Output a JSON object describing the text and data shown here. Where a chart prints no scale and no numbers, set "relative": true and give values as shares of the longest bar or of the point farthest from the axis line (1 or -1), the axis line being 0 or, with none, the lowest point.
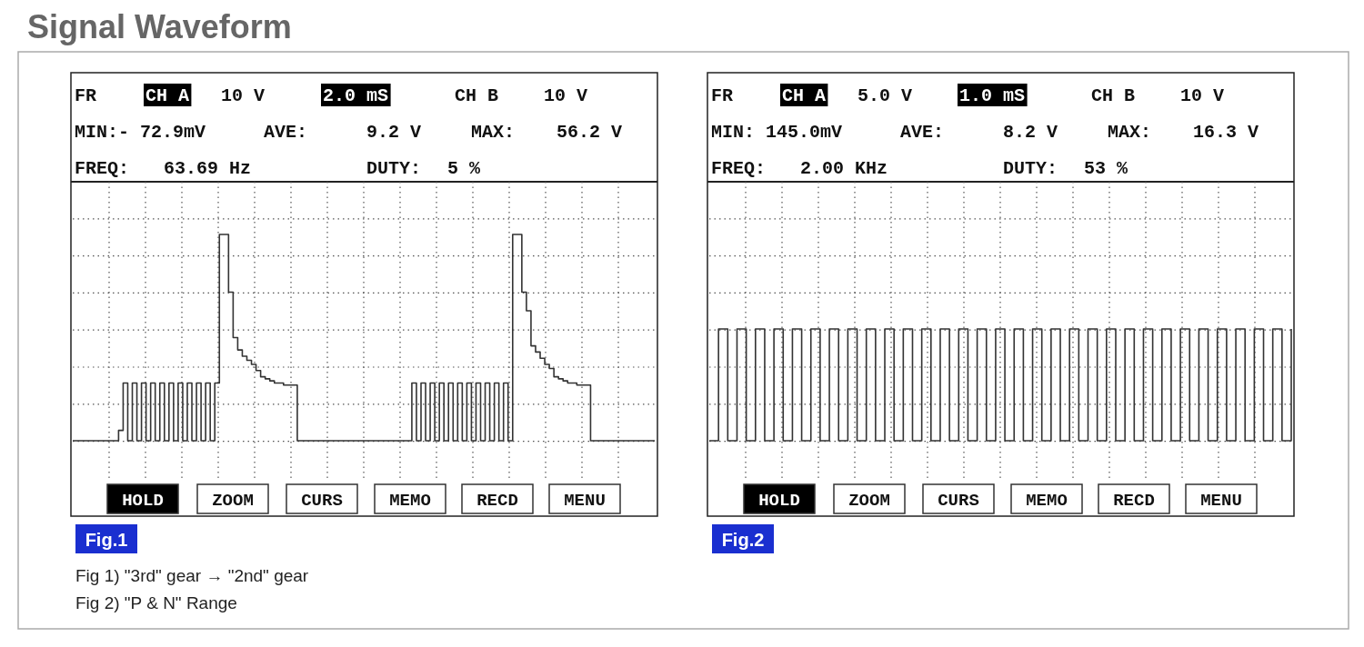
{
  "chart_data": [
    {
      "type": "step",
      "title": "Signal Waveform",
      "subtitle": "Fig.1",
      "relative": true,
      "grid": true,
      "categories": [
        null,
        null,
        null,
        null,
        null,
        null,
        null,
        null,
        null,
        null,
        null,
        null,
        null,
        null,
        null,
        null,
        null,
        null,
        null,
        null,
        null,
        null,
        null,
        null,
        null,
        null,
        null,
        null,
        null,
        null,
        null,
        null,
        null,
        null,
        null,
        null,
        null,
        null,
        null,
        null,
        null,
        null,
        null,
        null,
        null,
        null,
        null,
        null,
        null,
        null,
        null,
        null,
        null,
        null,
        null,
        null,
        null,
        null,
        null,
        null,
        null,
        null,
        null,
        null,
        null,
        null,
        null,
        null,
        null,
        null,
        null,
        null,
        null,
        null,
        null,
        null,
        null,
        null,
        null,
        null,
        null,
        null,
        null,
        null,
        null,
        null,
        null,
        null,
        null,
        null,
        null,
        null,
        null,
        null,
        null,
        null,
        null,
        null,
        null,
        null,
        null,
        null,
        null,
        null,
        null,
        null,
        null,
        null,
        null,
        null,
        null,
        null,
        null,
        null,
        null,
        null,
        null,
        null,
        null,
        null,
        null,
        null,
        null,
        null,
        null,
        null,
        null,
        null
      ],
      "series": [
        {
          "color": "#333333",
          "values": [
            0,
            0,
            0,
            0,
            0,
            0,
            0,
            0,
            0,
            0,
            0.05,
            0.28,
            0,
            0.28,
            0,
            0.28,
            0,
            0.28,
            0,
            0.28,
            0,
            0.28,
            0,
            0.28,
            0,
            0.28,
            0,
            0.28,
            0,
            0.28,
            0,
            0.28,
            1,
            1,
            0.72,
            0.5,
            0.44,
            0.41,
            0.39,
            0.37,
            0.34,
            0.31,
            0.3,
            0.29,
            0.28,
            0.28,
            0.27,
            0.27,
            0.27,
            0,
            0,
            0,
            0,
            0,
            0,
            0,
            0,
            0,
            0,
            0,
            0,
            0,
            0,
            0,
            0,
            0,
            0,
            0,
            0,
            0,
            0,
            0,
            0,
            0,
            0.28,
            0,
            0.28,
            0,
            0.28,
            0,
            0.28,
            0,
            0.28,
            0,
            0.28,
            0,
            0.28,
            0,
            0.28,
            0,
            0.28,
            0,
            0.28,
            0,
            0.28,
            0,
            1,
            1,
            0.72,
            0.63,
            0.46,
            0.43,
            0.4,
            0.37,
            0.35,
            0.31,
            0.3,
            0.29,
            0.28,
            0.28,
            0.27,
            0.27,
            0.27,
            0,
            0,
            0,
            0,
            0,
            0,
            0,
            0,
            0,
            0,
            0,
            0,
            0,
            0,
            0
          ]
        }
      ],
      "annotations": [
        "FR",
        "CH A",
        "10 V",
        "2.0 mS",
        "CH B",
        "10 V",
        "MIN:- 72.9mV",
        "AVE:",
        "9.2 V",
        "MAX:",
        "56.2 V",
        "FREQ:",
        "63.69 Hz",
        "DUTY:",
        "5 %",
        "HOLD",
        "ZOOM",
        "CURS",
        "MEMO",
        "RECD",
        "MENU",
        "Fig 1) \"3rd\" gear → \"2nd\" gear",
        "Fig 2) \"P & N\" Range"
      ]
    },
    {
      "type": "step",
      "subtitle": "Fig.2",
      "relative": true,
      "grid": true,
      "categories": [
        null,
        null,
        null,
        null,
        null,
        null,
        null,
        null,
        null,
        null,
        null,
        null,
        null,
        null,
        null,
        null,
        null,
        null,
        null,
        null,
        null,
        null,
        null,
        null,
        null,
        null,
        null,
        null,
        null,
        null,
        null,
        null,
        null,
        null,
        null,
        null,
        null,
        null,
        null,
        null,
        null,
        null,
        null,
        null,
        null,
        null,
        null,
        null,
        null,
        null,
        null,
        null,
        null,
        null,
        null,
        null,
        null,
        null,
        null,
        null,
        null,
        null,
        null,
        null
      ],
      "series": [
        {
          "color": "#333333",
          "values": [
            0,
            1,
            0,
            1,
            0,
            1,
            0,
            1,
            0,
            1,
            0,
            1,
            0,
            1,
            0,
            1,
            0,
            1,
            0,
            1,
            0,
            1,
            0,
            1,
            0,
            1,
            0,
            1,
            0,
            1,
            0,
            1,
            0,
            1,
            0,
            1,
            0,
            1,
            0,
            1,
            0,
            1,
            0,
            1,
            0,
            1,
            0,
            1,
            0,
            1,
            0,
            1,
            0,
            1,
            0,
            1,
            0,
            1,
            0,
            1,
            0,
            1,
            0,
            1
          ]
        }
      ],
      "annotations": [
        "FR",
        "CH A",
        "5.0 V",
        "1.0 mS",
        "CH B",
        "10 V",
        "MIN: 145.0mV",
        "AVE:",
        "8.2 V",
        "MAX:",
        "16.3 V",
        "FREQ:",
        "2.00 KHz",
        "DUTY:",
        "53 %",
        "HOLD",
        "ZOOM",
        "CURS",
        "MEMO",
        "RECD",
        "MENU"
      ]
    }
  ]
}
